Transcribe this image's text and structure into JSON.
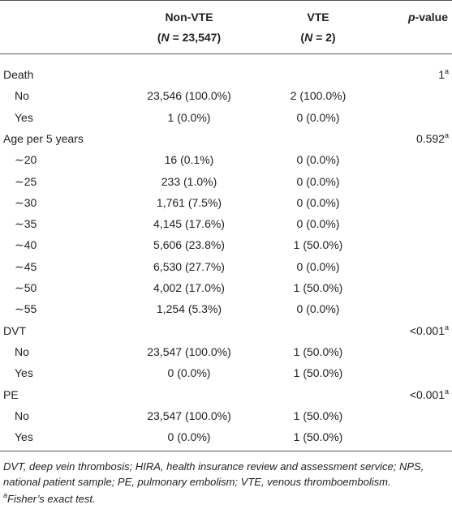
{
  "table": {
    "header": {
      "col1": {
        "line1": "Non-VTE",
        "line2": [
          "(",
          "N",
          " = 23,547)"
        ]
      },
      "col2": {
        "line1": "VTE",
        "line2": [
          "(",
          "N",
          " = 2)"
        ]
      },
      "col3": {
        "italic": "p",
        "rest": "-value"
      }
    },
    "groups": [
      {
        "label": "Death",
        "p_value": {
          "value": "1",
          "sup": "a"
        },
        "rows": [
          [
            "No",
            "23,546 (100.0%)",
            "2 (100.0%)"
          ],
          [
            "Yes",
            "1 (0.0%)",
            "0 (0.0%)"
          ]
        ]
      },
      {
        "label": "Age per 5 years",
        "p_value": {
          "value": "0.592",
          "sup": "a"
        },
        "rows": [
          [
            "∼20",
            "16 (0.1%)",
            "0 (0.0%)"
          ],
          [
            "∼25",
            "233 (1.0%)",
            "0 (0.0%)"
          ],
          [
            "∼30",
            "1,761 (7.5%)",
            "0 (0.0%)"
          ],
          [
            "∼35",
            "4,145 (17.6%)",
            "0 (0.0%)"
          ],
          [
            "∼40",
            "5,606 (23.8%)",
            "1 (50.0%)"
          ],
          [
            "∼45",
            "6,530 (27.7%)",
            "0 (0.0%)"
          ],
          [
            "∼50",
            "4,002 (17.0%)",
            "1 (50.0%)"
          ],
          [
            "∼55",
            "1,254 (5.3%)",
            "0 (0.0%)"
          ]
        ]
      },
      {
        "label": "DVT",
        "p_value": {
          "value": "<0.001",
          "sup": "a"
        },
        "rows": [
          [
            "No",
            "23,547 (100.0%)",
            "1 (50.0%)"
          ],
          [
            "Yes",
            "0 (0.0%)",
            "1 (50.0%)"
          ]
        ]
      },
      {
        "label": "PE",
        "p_value": {
          "value": "<0.001",
          "sup": "a"
        },
        "rows": [
          [
            "No",
            "23,547 (100.0%)",
            "1 (50.0%)"
          ],
          [
            "Yes",
            "0 (0.0%)",
            "1 (50.0%)"
          ]
        ]
      }
    ],
    "footnotes": {
      "abbreviations": "DVT, deep vein thrombosis; HIRA, health insurance review and assessment service; NPS, national patient sample; PE, pulmonary embolism; VTE, venous thromboembolism.",
      "a": {
        "mark": "a",
        "text": "Fisher’s exact test."
      }
    }
  }
}
